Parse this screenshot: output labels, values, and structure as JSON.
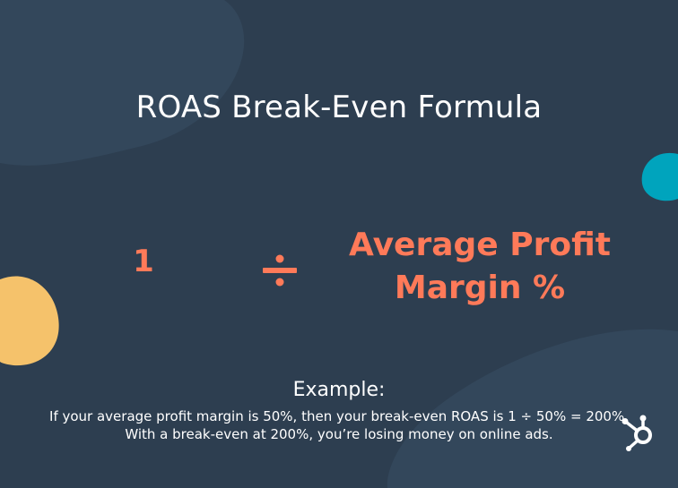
{
  "title": "ROAS Break-Even Formula",
  "formula": {
    "numerator": "1",
    "operator_icon": "divide-icon",
    "denominator_line1": "Average Profit",
    "denominator_line2": "Margin %"
  },
  "example": {
    "label": "Example:",
    "text": "If your average profit margin is 50%, then your break-even ROAS is 1 ÷ 50% = 200%. With a break-even at 200%, you’re losing money on online ads."
  },
  "logo_icon": "hubspot-sprocket-icon",
  "colors": {
    "background": "#2d3e50",
    "background_shape": "#33475b",
    "accent": "#ff7a59",
    "yellow_shape": "#f5c26b",
    "teal_shape": "#00a4bd",
    "text": "#ffffff"
  }
}
